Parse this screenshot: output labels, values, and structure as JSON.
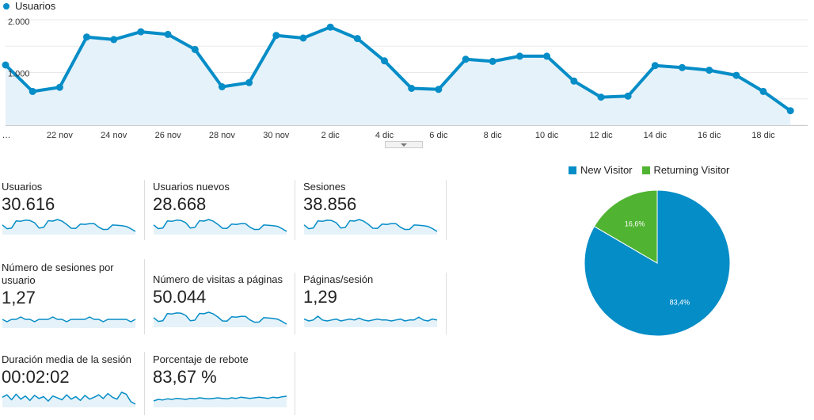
{
  "colors": {
    "primary": "#058dc7",
    "area_fill": "#e6f2f9",
    "secondary": "#50b432",
    "grid": "#e8e8e8"
  },
  "chart_data": [
    {
      "type": "line",
      "series": [
        {
          "name": "Usuarios",
          "values": [
            1160,
            650,
            730,
            1700,
            1650,
            1800,
            1750,
            1460,
            740,
            820,
            1730,
            1680,
            1890,
            1670,
            1240,
            710,
            690,
            1270,
            1230,
            1330,
            1330,
            850,
            540,
            560,
            1150,
            1110,
            1060,
            960,
            650,
            280
          ]
        }
      ],
      "x_tick_labels": [
        "…",
        "22 nov",
        "24 nov",
        "26 nov",
        "28 nov",
        "30 nov",
        "2 dic",
        "4 dic",
        "6 dic",
        "8 dic",
        "10 dic",
        "12 dic",
        "14 dic",
        "16 dic",
        "18 dic"
      ],
      "y_tick_labels": [
        "2.000",
        "1.000"
      ],
      "y_ticks": [
        2000,
        1000
      ],
      "ylim": [
        0,
        2000
      ],
      "grid": true,
      "legend": "top-left"
    },
    {
      "type": "pie",
      "labels": [
        "New Visitor",
        "Returning Visitor"
      ],
      "values": [
        83.4,
        16.6
      ],
      "data_labels": [
        "83,4%",
        "16,6%"
      ],
      "colors": [
        "#058dc7",
        "#50b432"
      ],
      "legend": "top"
    }
  ],
  "metrics": [
    {
      "label": "Usuarios",
      "value": "30.616",
      "spark": [
        1160,
        650,
        730,
        1700,
        1650,
        1800,
        1750,
        1460,
        740,
        820,
        1730,
        1680,
        1890,
        1670,
        1240,
        710,
        690,
        1270,
        1230,
        1330,
        1330,
        850,
        540,
        560,
        1150,
        1110,
        1060,
        960,
        650,
        280
      ]
    },
    {
      "label": "Usuarios nuevos",
      "value": "28.668",
      "spark": [
        1090,
        610,
        680,
        1590,
        1540,
        1690,
        1640,
        1360,
        690,
        760,
        1620,
        1570,
        1770,
        1560,
        1160,
        660,
        640,
        1190,
        1150,
        1240,
        1250,
        790,
        500,
        520,
        1080,
        1040,
        990,
        900,
        610,
        260
      ]
    },
    {
      "label": "Sesiones",
      "value": "38.856",
      "spark": [
        1480,
        820,
        930,
        2160,
        2090,
        2280,
        2220,
        1850,
        940,
        1040,
        2190,
        2130,
        2400,
        2120,
        1570,
        900,
        880,
        1610,
        1560,
        1690,
        1690,
        1080,
        690,
        710,
        1460,
        1410,
        1340,
        1220,
        830,
        360
      ]
    },
    {
      "label": "Número de sesiones por usuario",
      "value": "1,27",
      "spark": [
        1.27,
        1.26,
        1.27,
        1.27,
        1.28,
        1.27,
        1.27,
        1.26,
        1.27,
        1.27,
        1.27,
        1.28,
        1.27,
        1.27,
        1.26,
        1.27,
        1.27,
        1.27,
        1.27,
        1.28,
        1.27,
        1.27,
        1.26,
        1.27,
        1.27,
        1.27,
        1.27,
        1.27,
        1.26,
        1.27
      ]
    },
    {
      "label": "Número de visitas a páginas",
      "value": "50.044",
      "spark": [
        1900,
        1060,
        1200,
        2790,
        2700,
        2940,
        2860,
        2390,
        1210,
        1340,
        2830,
        2750,
        3090,
        2730,
        2030,
        1160,
        1130,
        2080,
        2010,
        2180,
        2180,
        1390,
        880,
        920,
        1880,
        1820,
        1730,
        1570,
        1060,
        460
      ]
    },
    {
      "label": "Páginas/sesión",
      "value": "1,29",
      "spark": [
        1.3,
        1.28,
        1.29,
        1.33,
        1.29,
        1.28,
        1.29,
        1.3,
        1.28,
        1.29,
        1.3,
        1.29,
        1.31,
        1.29,
        1.28,
        1.29,
        1.3,
        1.29,
        1.29,
        1.28,
        1.29,
        1.3,
        1.28,
        1.29,
        1.29,
        1.32,
        1.29,
        1.28,
        1.3,
        1.29
      ]
    },
    {
      "label": "Duración media de la sesión",
      "value": "00:02:02",
      "spark": [
        118,
        126,
        110,
        128,
        112,
        122,
        108,
        124,
        114,
        120,
        106,
        122,
        116,
        110,
        126,
        112,
        120,
        108,
        124,
        112,
        118,
        126,
        114,
        130,
        118,
        112,
        134,
        128,
        104,
        96
      ]
    },
    {
      "label": "Porcentaje de rebote",
      "value": "83,67 %",
      "spark": [
        83.2,
        83.5,
        83.4,
        83.6,
        83.5,
        83.7,
        83.6,
        83.5,
        83.7,
        83.6,
        83.8,
        83.7,
        83.6,
        83.7,
        83.8,
        83.7,
        83.6,
        83.8,
        83.7,
        83.9,
        83.8,
        83.7,
        83.8,
        83.9,
        83.8,
        83.7,
        83.9,
        83.8,
        84.0,
        84.1
      ]
    }
  ]
}
